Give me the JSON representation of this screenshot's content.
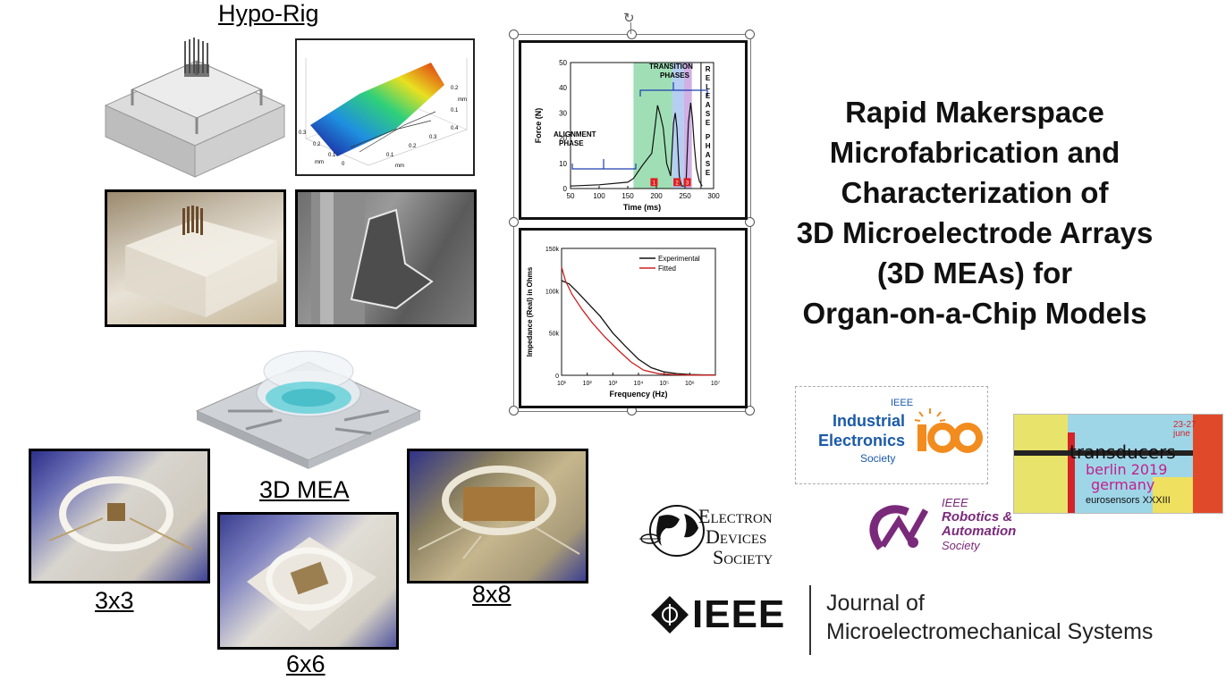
{
  "labels": {
    "hypo_rig": "Hypo-Rig",
    "mea": "3D MEA",
    "x3": "3x3",
    "x6": "6x6",
    "x8": "8x8"
  },
  "title_lines": [
    "Rapid Makerspace",
    "Microfabrication and",
    "Characterization of",
    "3D Microelectrode Arrays",
    "(3D MEAs) for",
    "Organ-on-a-Chip Models"
  ],
  "surface_plot": {
    "axis_ticks_right": [
      "0.2",
      "0.1",
      "0"
    ],
    "axis_ticks_left": [
      "0.3",
      "0.2",
      "0.1",
      "0"
    ],
    "axis_ticks_bottom": [
      "0.1",
      "0.2",
      "0.3",
      "0.4"
    ],
    "unit": "mm"
  },
  "force_chart": {
    "type": "line",
    "xlabel": "Time (ms)",
    "ylabel": "Force (N)",
    "xlim": [
      50,
      300
    ],
    "ylim": [
      0,
      50
    ],
    "x_ticks": [
      "50",
      "100",
      "150",
      "200",
      "250",
      "300"
    ],
    "y_ticks": [
      "0",
      "10",
      "20",
      "30",
      "40",
      "50"
    ],
    "annotations": {
      "alignment": [
        "ALIGNMENT",
        "PHASE"
      ],
      "transition": [
        "TRANSITION",
        "PHASES"
      ],
      "release": "RELEASE PHASE",
      "markers": [
        "1",
        "2",
        "3"
      ]
    },
    "x": [
      50,
      100,
      150,
      160,
      175,
      185,
      192,
      198,
      202,
      207,
      212,
      218,
      225,
      230,
      233,
      236,
      240,
      244,
      248,
      252,
      256,
      260,
      263,
      266,
      270,
      275,
      280
    ],
    "y": [
      1,
      1.5,
      2.5,
      4,
      9,
      12,
      14,
      25,
      33,
      29,
      24,
      10,
      5,
      26,
      30,
      24,
      5,
      1,
      1,
      3,
      26,
      34,
      28,
      18,
      8,
      3,
      1
    ]
  },
  "impedance_chart": {
    "type": "line",
    "xlabel": "Frequency (Hz)",
    "ylabel": "Impedance (Real) in Ohms",
    "x_ticks": [
      "10¹",
      "10²",
      "10³",
      "10⁴",
      "10⁵",
      "10⁶",
      "10⁷"
    ],
    "y_ticks": [
      "0",
      "50k",
      "100k",
      "150k"
    ],
    "ylim": [
      0,
      150000
    ],
    "legend": [
      "Experimental",
      "Fitted"
    ],
    "series": [
      {
        "name": "Experimental",
        "color": "#111111",
        "logx": [
          1,
          1.3,
          1.6,
          2,
          2.5,
          3,
          3.5,
          4,
          4.5,
          5,
          5.5,
          6,
          6.5,
          7
        ],
        "values": [
          112000,
          108000,
          99000,
          86000,
          70000,
          50000,
          34000,
          19000,
          9000,
          4000,
          2000,
          1000,
          500,
          300
        ]
      },
      {
        "name": "Fitted",
        "color": "#cc2222",
        "logx": [
          1,
          1.15,
          1.4,
          1.8,
          2.2,
          2.7,
          3.2,
          3.7,
          4.2,
          4.8,
          5.5,
          6,
          6.5,
          7
        ],
        "values": [
          128000,
          112000,
          96000,
          78000,
          62000,
          45000,
          30000,
          16000,
          6000,
          1800,
          600,
          300,
          200,
          150
        ]
      }
    ]
  },
  "logos": {
    "ies": [
      "IEEE",
      "Industrial",
      "Electronics",
      "Society"
    ],
    "transducers": [
      "transducers",
      "berlin 2019",
      "germany",
      "eurosensors XXXIII",
      "23-27",
      "june"
    ],
    "eds": [
      "LECTRON",
      "EVICES",
      "OCIETY"
    ],
    "ras": [
      "IEEE",
      "Robotics &",
      "Automation",
      "Society"
    ],
    "ieee": "IEEE",
    "journal": [
      "Journal of",
      "Microelectromechanical Systems"
    ]
  },
  "colors": {
    "ies_blue": "#1b5aa8",
    "ies_orange": "#f28c1e",
    "ras_purple": "#7a2a7a",
    "ras_blue": "#3a4fb0",
    "transition_green": "#8fd9a8",
    "transition_blue": "#a9c6ee",
    "transition_purple": "#c9a3e0",
    "marker_red": "#e02020"
  }
}
